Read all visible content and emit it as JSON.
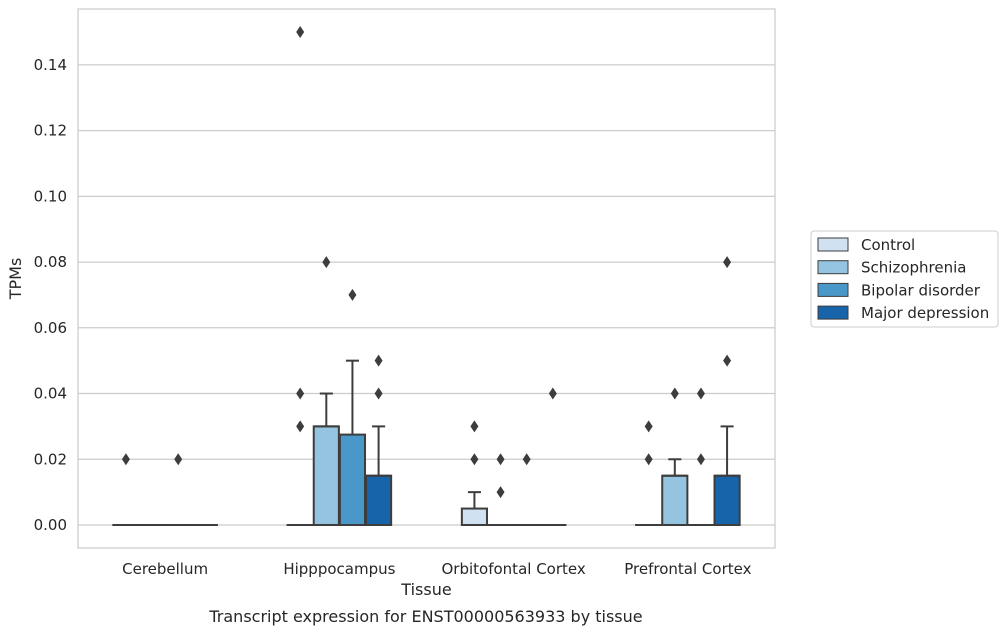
{
  "chart_data": {
    "type": "box",
    "title": "",
    "caption": "Transcript expression for ENST00000563933 by tissue",
    "xlabel": "Tissue",
    "ylabel": "TPMs",
    "ylim": [
      -0.007,
      0.157
    ],
    "yticks": [
      0.0,
      0.02,
      0.04,
      0.06,
      0.08,
      0.1,
      0.12,
      0.14
    ],
    "ytick_labels": [
      "0.00",
      "0.02",
      "0.04",
      "0.06",
      "0.08",
      "0.10",
      "0.12",
      "0.14"
    ],
    "grid": "horizontal",
    "legend_placement": "right",
    "categories": [
      "Cerebellum",
      "Hipppocampus",
      "Orbitofontal Cortex",
      "Prefrontal Cortex"
    ],
    "series": [
      {
        "name": "Control",
        "color": "#d0e1f2",
        "boxes": [
          {
            "q1": 0,
            "median": 0,
            "q3": 0,
            "whisker_low": 0,
            "whisker_high": 0,
            "outliers": [
              0.02
            ]
          },
          {
            "q1": 0,
            "median": 0,
            "q3": 0,
            "whisker_low": 0,
            "whisker_high": 0,
            "outliers": [
              0.15,
              0.04,
              0.03
            ]
          },
          {
            "q1": 0,
            "median": 0,
            "q3": 0.005,
            "whisker_low": 0,
            "whisker_high": 0.01,
            "outliers": [
              0.03,
              0.02
            ]
          },
          {
            "q1": 0,
            "median": 0,
            "q3": 0,
            "whisker_low": 0,
            "whisker_high": 0,
            "outliers": [
              0.03,
              0.02
            ]
          }
        ]
      },
      {
        "name": "Schizophrenia",
        "color": "#94c4df",
        "boxes": [
          {
            "q1": 0,
            "median": 0,
            "q3": 0,
            "whisker_low": 0,
            "whisker_high": 0,
            "outliers": []
          },
          {
            "q1": 0,
            "median": 0.03,
            "q3": 0.03,
            "whisker_low": 0,
            "whisker_high": 0.04,
            "outliers": [
              0.08
            ]
          },
          {
            "q1": 0,
            "median": 0,
            "q3": 0,
            "whisker_low": 0,
            "whisker_high": 0,
            "outliers": [
              0.02,
              0.01
            ]
          },
          {
            "q1": 0,
            "median": 0.015,
            "q3": 0.015,
            "whisker_low": 0,
            "whisker_high": 0.02,
            "outliers": [
              0.04
            ]
          }
        ]
      },
      {
        "name": "Bipolar disorder",
        "color": "#4a98c9",
        "boxes": [
          {
            "q1": 0,
            "median": 0,
            "q3": 0,
            "whisker_low": 0,
            "whisker_high": 0,
            "outliers": [
              0.02
            ]
          },
          {
            "q1": 0,
            "median": 0,
            "q3": 0.0275,
            "whisker_low": 0,
            "whisker_high": 0.05,
            "outliers": [
              0.07
            ]
          },
          {
            "q1": 0,
            "median": 0,
            "q3": 0,
            "whisker_low": 0,
            "whisker_high": 0,
            "outliers": [
              0.02
            ]
          },
          {
            "q1": 0,
            "median": 0,
            "q3": 0,
            "whisker_low": 0,
            "whisker_high": 0,
            "outliers": [
              0.04,
              0.02
            ]
          }
        ]
      },
      {
        "name": "Major depression",
        "color": "#1764ab",
        "boxes": [
          {
            "q1": 0,
            "median": 0,
            "q3": 0,
            "whisker_low": 0,
            "whisker_high": 0,
            "outliers": []
          },
          {
            "q1": 0,
            "median": 0.015,
            "q3": 0.015,
            "whisker_low": 0,
            "whisker_high": 0.03,
            "outliers": [
              0.05,
              0.04
            ]
          },
          {
            "q1": 0,
            "median": 0,
            "q3": 0,
            "whisker_low": 0,
            "whisker_high": 0,
            "outliers": [
              0.04
            ]
          },
          {
            "q1": 0,
            "median": 0.015,
            "q3": 0.015,
            "whisker_low": 0,
            "whisker_high": 0.03,
            "outliers": [
              0.08,
              0.05
            ]
          }
        ]
      }
    ]
  }
}
